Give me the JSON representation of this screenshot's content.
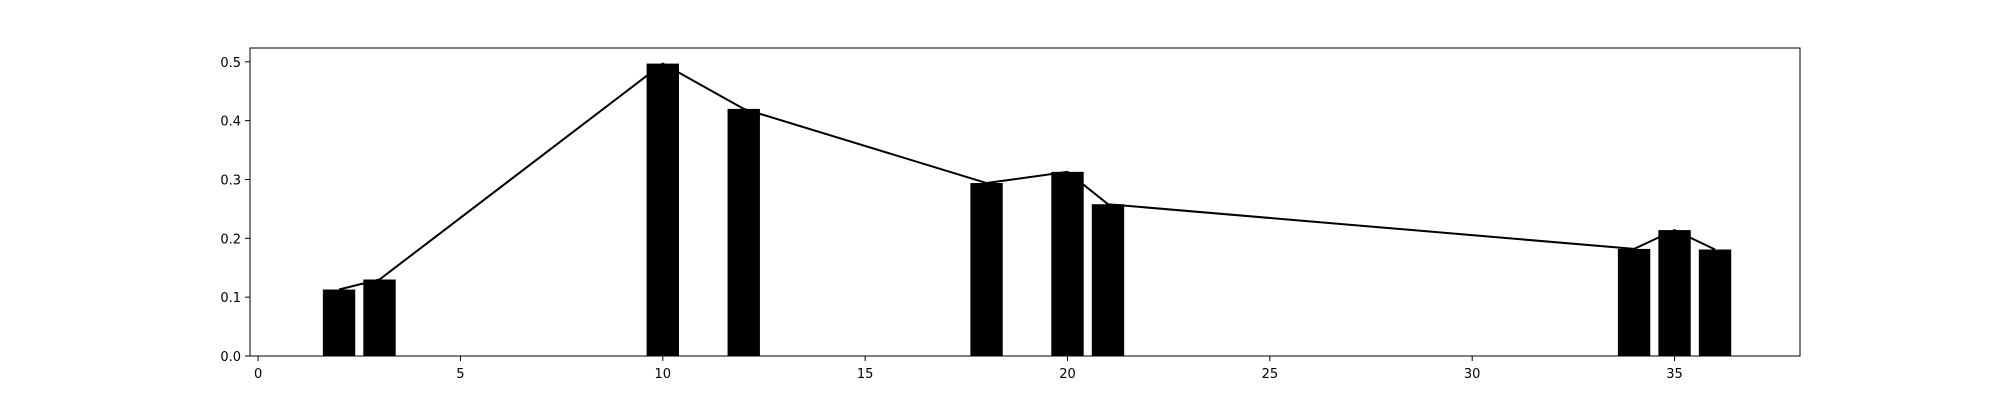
{
  "chart_data": {
    "type": "bar",
    "x": [
      2,
      3,
      10,
      12,
      18,
      20,
      21,
      34,
      35,
      36
    ],
    "values": [
      0.113,
      0.13,
      0.497,
      0.42,
      0.294,
      0.313,
      0.258,
      0.182,
      0.214,
      0.181
    ],
    "line": {
      "x": [
        2,
        3,
        10,
        12,
        18,
        20,
        21,
        34,
        35,
        36
      ],
      "values": [
        0.113,
        0.13,
        0.497,
        0.42,
        0.294,
        0.313,
        0.258,
        0.182,
        0.214,
        0.181
      ]
    },
    "bar_width": 0.8,
    "xlim": [
      -0.2,
      38.1
    ],
    "ylim": [
      0,
      0.5235
    ],
    "x_ticks": [
      0,
      5,
      10,
      15,
      20,
      25,
      30,
      35
    ],
    "x_tick_labels": [
      "0",
      "5",
      "10",
      "15",
      "20",
      "25",
      "30",
      "35"
    ],
    "y_ticks": [
      0.0,
      0.1,
      0.2,
      0.3,
      0.4,
      0.5
    ],
    "y_tick_labels": [
      "0.0",
      "0.1",
      "0.2",
      "0.3",
      "0.4",
      "0.5"
    ],
    "title": "",
    "xlabel": "",
    "ylabel": "",
    "grid": false,
    "legend": "none",
    "colors": {
      "bars": "#000000",
      "line": "#000000",
      "axes": "#000000",
      "background": "#ffffff"
    }
  }
}
